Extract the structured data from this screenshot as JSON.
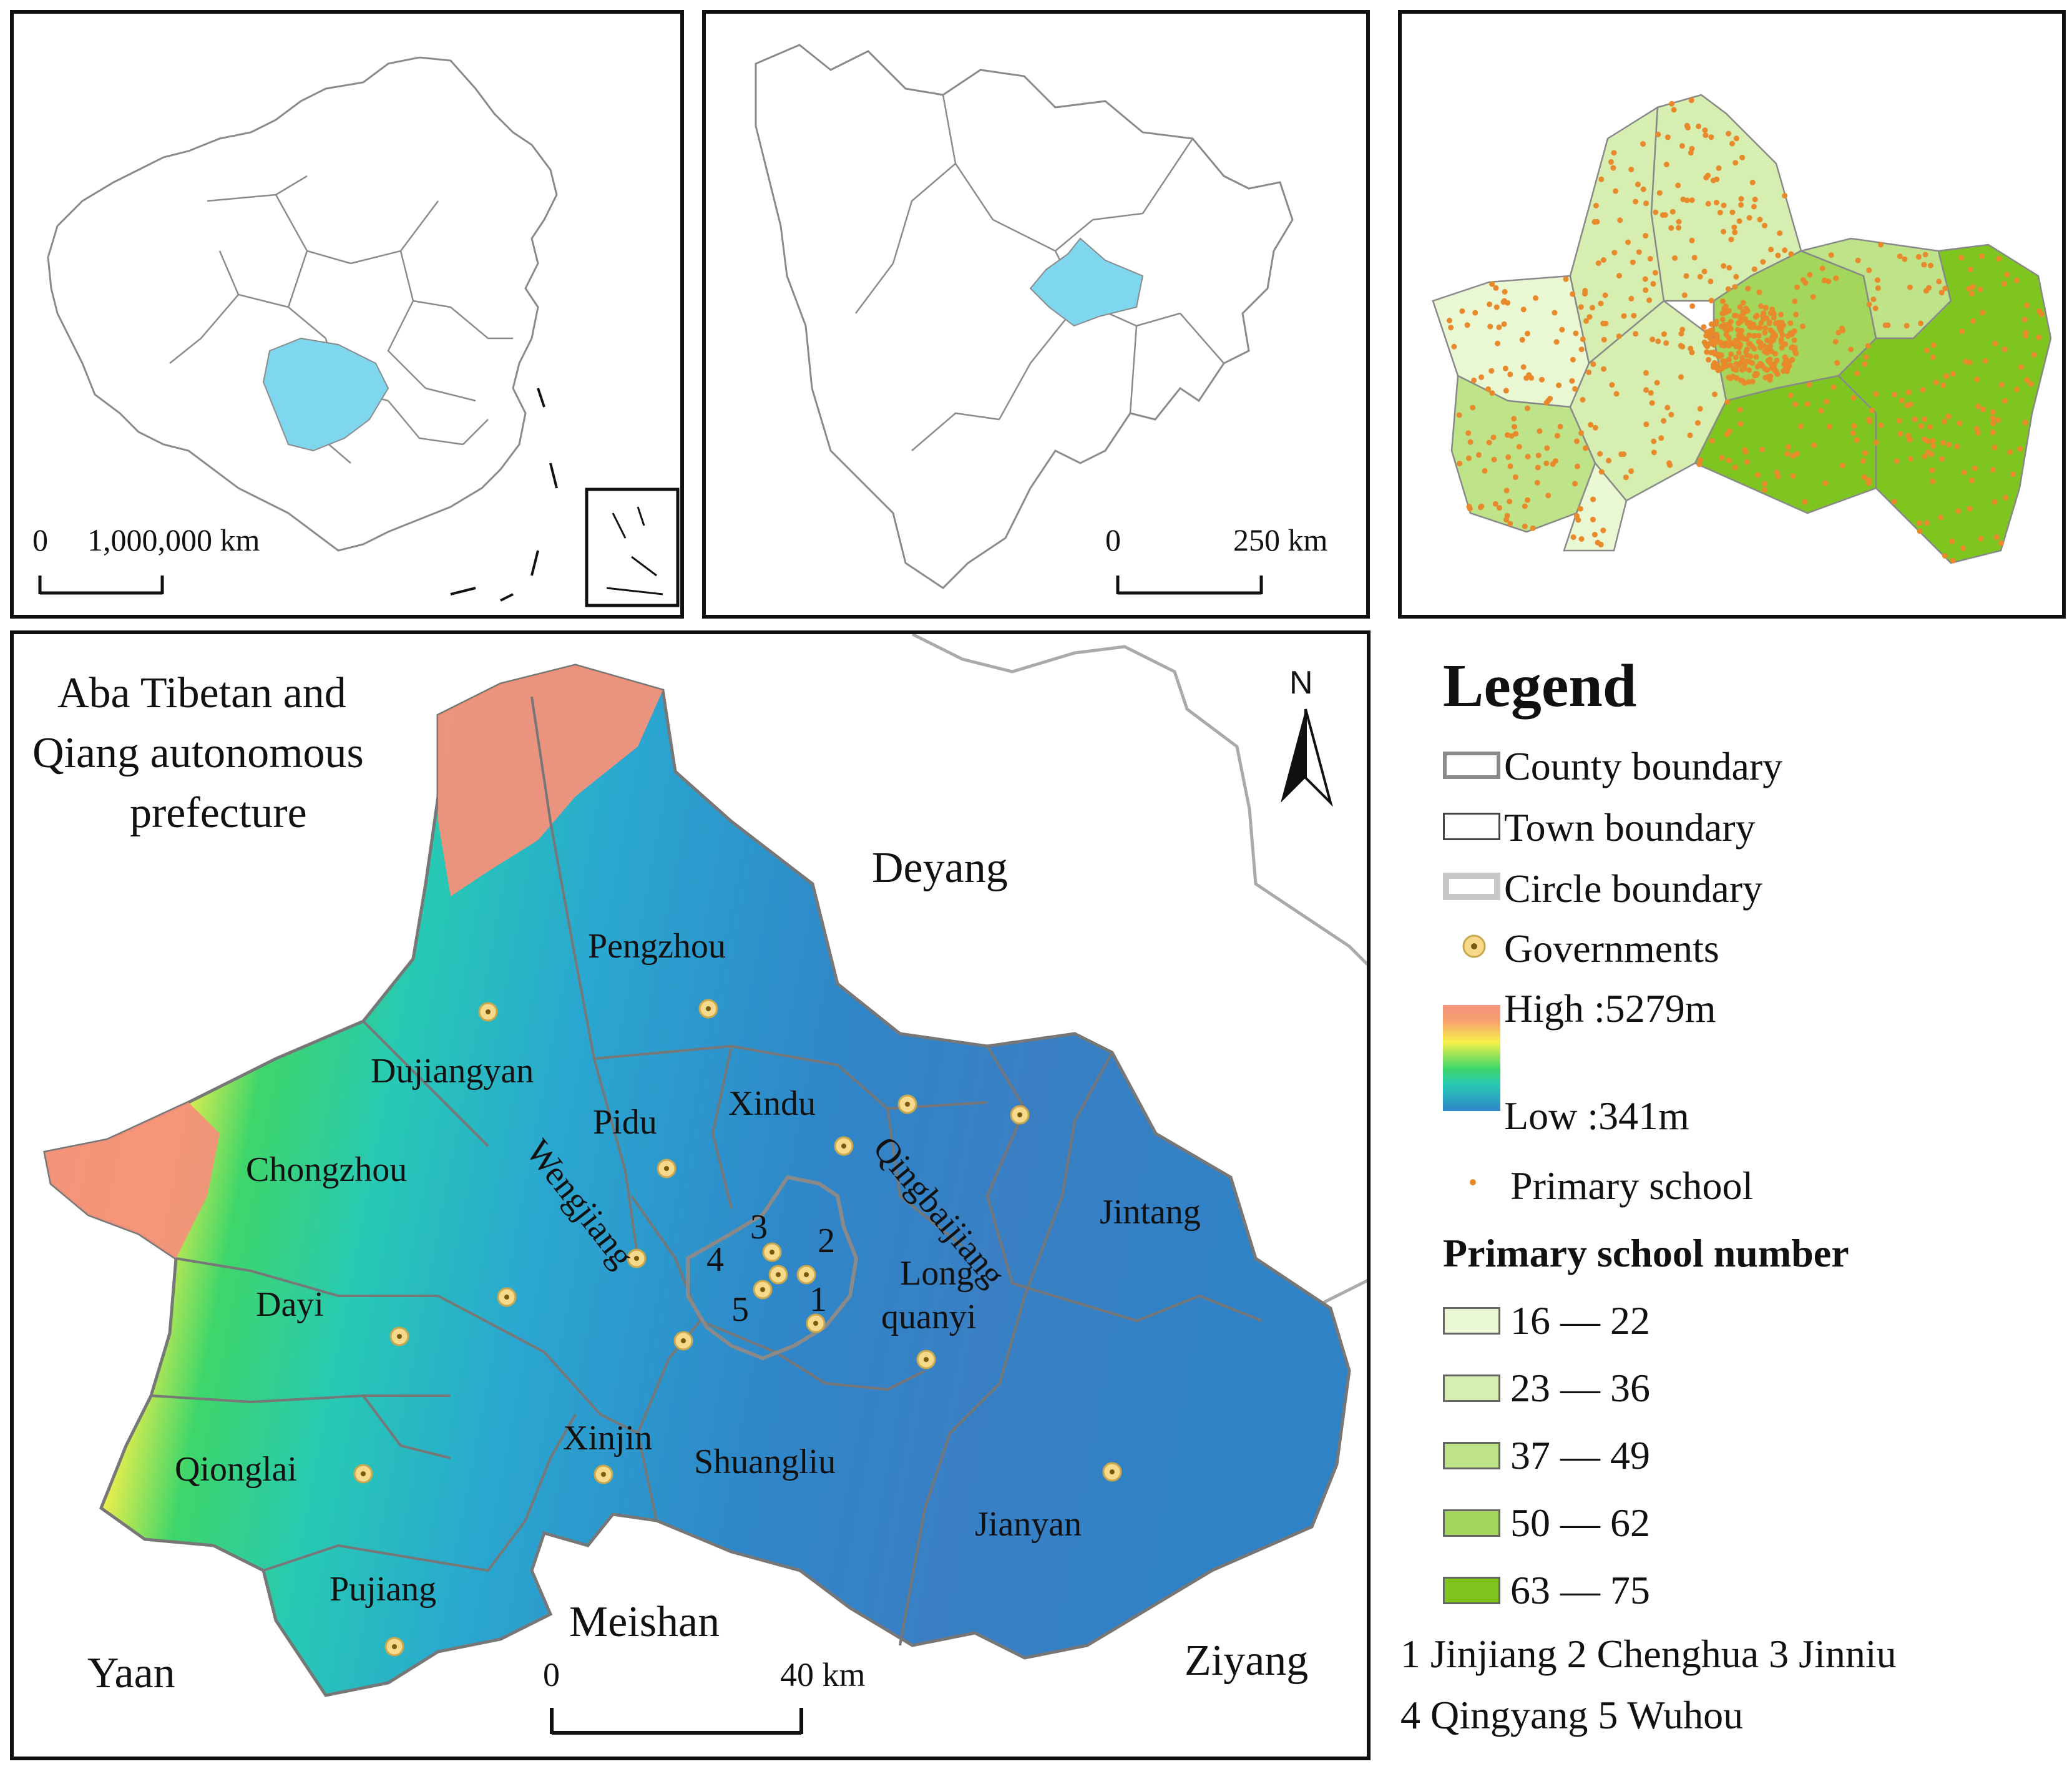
{
  "inset_china": {
    "scale_zero": "0",
    "scale_value": "1,000,000 km"
  },
  "inset_sichuan": {
    "scale_zero": "0",
    "scale_value": "250 km"
  },
  "main_map": {
    "north": "N",
    "scale_zero": "0",
    "scale_value": "40 km",
    "neighbors": {
      "aba_line1": "Aba Tibetan and",
      "aba_line2": "Qiang autonomous",
      "aba_line3": "prefecture",
      "deyang": "Deyang",
      "meishan": "Meishan",
      "yaan": "Yaan",
      "ziyang": "Ziyang"
    },
    "districts": {
      "pengzhou": "Pengzhou",
      "dujiangyan": "Dujiangyan",
      "pidu": "Pidu",
      "xindu": "Xindu",
      "qingbaijiang": "Qingbaijiang",
      "chongzhou": "Chongzhou",
      "wengjiang": "Wengjiang",
      "jintang": "Jintang",
      "long_line1": "Long",
      "long_line2": "quanyi",
      "dayi": "Dayi",
      "qionglai": "Qionglai",
      "xinjin": "Xinjin",
      "shuangliu": "Shuangliu",
      "jianyan": "Jianyan",
      "pujiang": "Pujiang",
      "n1": "1",
      "n2": "2",
      "n3": "3",
      "n4": "4",
      "n5": "5"
    }
  },
  "legend": {
    "title": "Legend",
    "county_boundary": "County boundary",
    "town_boundary": "Town  boundary",
    "circle_boundary": "Circle boundary",
    "governments": "Governments",
    "high": "High :5279m",
    "low": "Low :341m",
    "primary_school": "Primary school",
    "number_title": "Primary school number",
    "classes": [
      {
        "range": "16 — 22",
        "color": "#e9f7d3"
      },
      {
        "range": "23 — 36",
        "color": "#d6efb0"
      },
      {
        "range": "37 — 49",
        "color": "#bfe388"
      },
      {
        "range": "50 — 62",
        "color": "#a3d65a"
      },
      {
        "range": "63 — 75",
        "color": "#7ec51f"
      }
    ],
    "key_line1": "1   Jinjiang  2   Chenghua  3  Jinniu",
    "key_line2": "4   Qingyang  5   Wuhou"
  },
  "colors": {
    "highlight": "#7fd7ef",
    "elev_high": "#f4917a",
    "elev_mid": "#f6f04a",
    "elev_green": "#3ed66a",
    "elev_low": "#2f86c8",
    "gov_fill": "#f6d98a",
    "school": "#e8892b"
  }
}
